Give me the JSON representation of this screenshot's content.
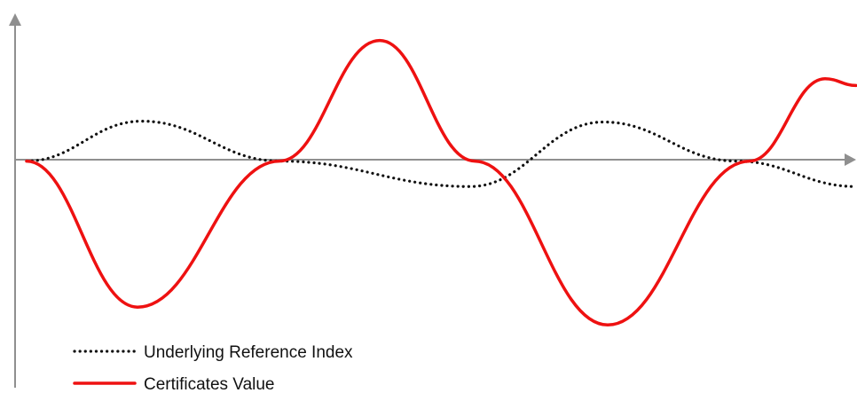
{
  "chart_data": {
    "type": "line",
    "title": "",
    "xlabel": "",
    "ylabel": "",
    "xlim": [
      0,
      935
    ],
    "ylim": [
      -200,
      150
    ],
    "grid": false,
    "legend_position": "bottom-left",
    "series": [
      {
        "name": "Underlying Reference Index",
        "color": "#111111",
        "line_style": "dotted",
        "x": [
          0,
          130,
          285,
          500,
          650,
          800,
          935
        ],
        "y": [
          0,
          47,
          0,
          -30,
          46,
          0,
          -30
        ]
      },
      {
        "name": "Certificates Value",
        "color": "#ee1111",
        "line_style": "solid",
        "x": [
          0,
          125,
          285,
          398,
          505,
          655,
          815,
          900,
          935
        ],
        "y": [
          0,
          -172,
          0,
          142,
          0,
          -193,
          0,
          97,
          89
        ]
      }
    ]
  }
}
